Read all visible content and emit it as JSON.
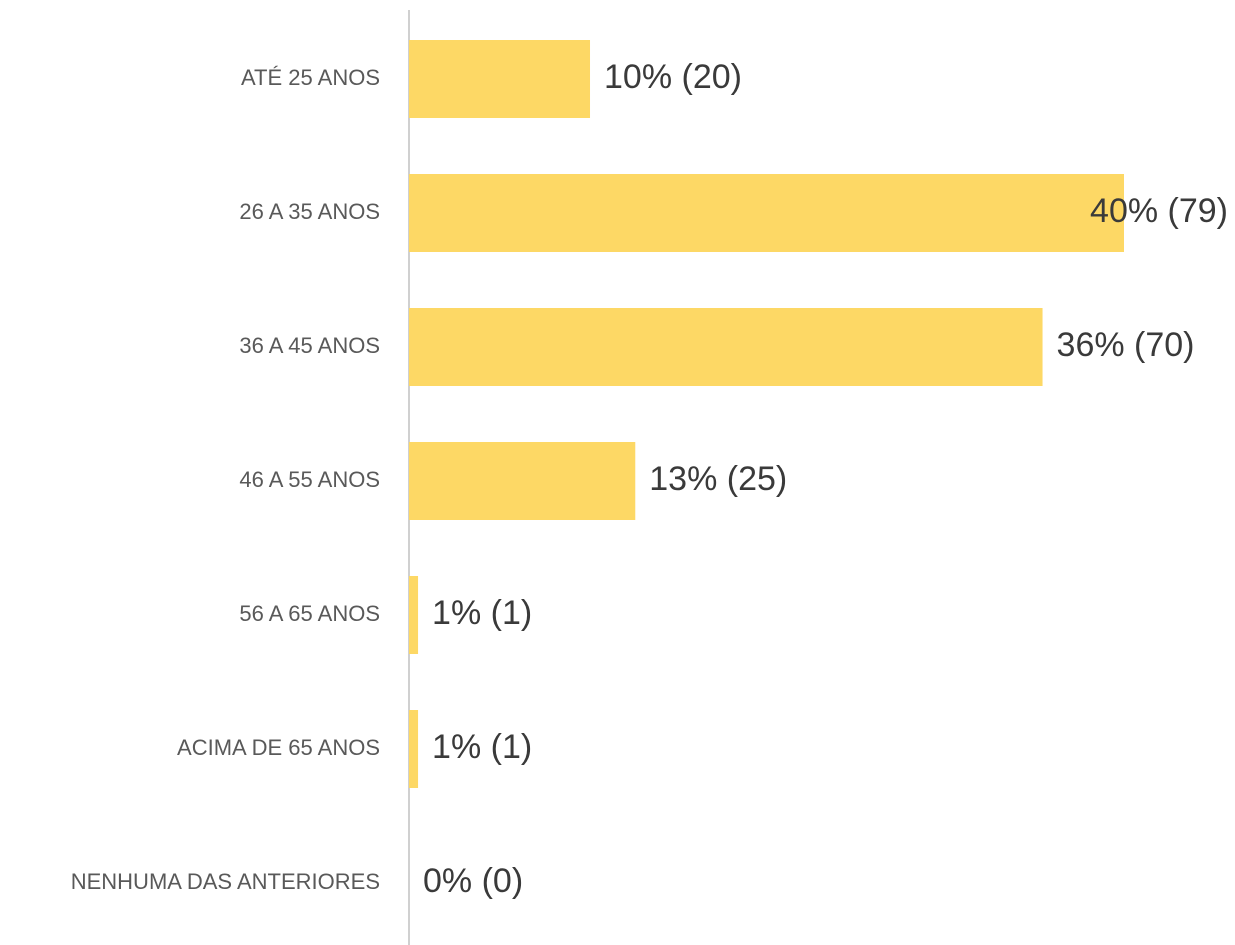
{
  "chart_data": {
    "type": "bar",
    "orientation": "horizontal",
    "categories": [
      "ATÉ 25 ANOS",
      "26 A 35 ANOS",
      "36 A 45 ANOS",
      "46 A 55 ANOS",
      "56 A 65 ANOS",
      "ACIMA DE 65 ANOS",
      "NENHUMA DAS ANTERIORES"
    ],
    "values": [
      20,
      79,
      70,
      25,
      1,
      1,
      0
    ],
    "value_labels": [
      "10% (20)",
      "40% (79)",
      "36% (70)",
      "13% (25)",
      "1% (1)",
      "1% (1)",
      "0% (0)"
    ],
    "color": "#fdd865"
  }
}
